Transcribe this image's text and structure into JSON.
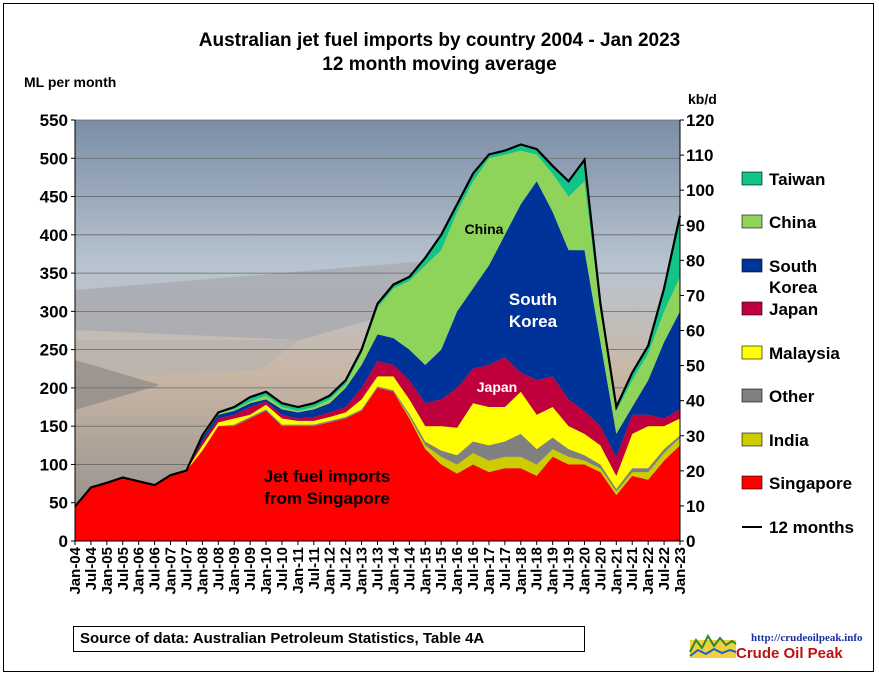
{
  "title_line1": "Australian  jet fuel imports  by country  2004 - Jan 2023",
  "title_line2": "12 month  moving  average",
  "left_axis_unit": "ML per month",
  "right_axis_unit": "kb/d",
  "source_text": "Source of data: Australian Petroleum Statistics, Table 4A",
  "logo": {
    "url": "http://crudeoilpeak.info",
    "name": "Crude Oil Peak"
  },
  "annotations": {
    "china": "China",
    "south_korea": "South\nKorea",
    "japan": "Japan",
    "singapore": "Jet fuel imports\nfrom Singapore"
  },
  "colors": {
    "Singapore": "#ff0000",
    "India": "#cccc00",
    "Other": "#808080",
    "Malaysia": "#ffff00",
    "Japan": "#c0003c",
    "South Korea": "#003399",
    "China": "#8fd45a",
    "Taiwan": "#12c38a",
    "12 months": "#000000"
  },
  "chart_data": {
    "type": "area",
    "ylabel_left": "ML per month",
    "ylabel_right": "kb/d",
    "ylim_left": [
      0,
      550
    ],
    "ylim_right": [
      0,
      120
    ],
    "yticks_left": [
      0,
      50,
      100,
      150,
      200,
      250,
      300,
      350,
      400,
      450,
      500,
      550
    ],
    "yticks_right": [
      0,
      10,
      20,
      30,
      40,
      50,
      60,
      70,
      80,
      90,
      100,
      110,
      120
    ],
    "x_ticks": [
      "Jan-04",
      "Jul-04",
      "Jan-05",
      "Jul-05",
      "Jan-06",
      "Jul-06",
      "Jan-07",
      "Jul-07",
      "Jan-08",
      "Jul-08",
      "Jan-09",
      "Jul-09",
      "Jan-10",
      "Jul-10",
      "Jan-11",
      "Jul-11",
      "Jan-12",
      "Jul-12",
      "Jan-13",
      "Jul-13",
      "Jan-14",
      "Jul-14",
      "Jan-15",
      "Jul-15",
      "Jan-16",
      "Jul-16",
      "Jan-17",
      "Jul-17",
      "Jan-18",
      "Jul-18",
      "Jan-19",
      "Jul-19",
      "Jan-20",
      "Jul-20",
      "Jan-21",
      "Jul-21",
      "Jan-22",
      "Jul-22",
      "Jan-23"
    ],
    "legend_position": "right",
    "legend": [
      "Taiwan",
      "China",
      "South Korea",
      "Japan",
      "Malaysia",
      "Other",
      "India",
      "Singapore",
      "12 months"
    ],
    "stack_order_bottom_to_top": [
      "Singapore",
      "India",
      "Other",
      "Malaysia",
      "Japan",
      "South Korea",
      "China",
      "Taiwan"
    ],
    "cumulative_top": {
      "x": [
        "Jan-04",
        "Jul-04",
        "Jan-05",
        "Jul-05",
        "Jan-06",
        "Jul-06",
        "Jan-07",
        "Jul-07",
        "Jan-08",
        "Jul-08",
        "Jan-09",
        "Jul-09",
        "Jan-10",
        "Jul-10",
        "Jan-11",
        "Jul-11",
        "Jan-12",
        "Jul-12",
        "Jan-13",
        "Jul-13",
        "Jan-14",
        "Jul-14",
        "Jan-15",
        "Jul-15",
        "Jan-16",
        "Jul-16",
        "Jan-17",
        "Jul-17",
        "Jan-18",
        "Jul-18",
        "Jan-19",
        "Jul-19",
        "Jan-20",
        "Jul-20",
        "Jan-21",
        "Jul-21",
        "Jan-22",
        "Jul-22",
        "Jan-23"
      ],
      "Singapore": [
        45,
        70,
        76,
        83,
        78,
        73,
        86,
        92,
        118,
        150,
        150,
        160,
        170,
        150,
        150,
        150,
        155,
        160,
        170,
        200,
        195,
        160,
        120,
        100,
        88,
        100,
        90,
        95,
        95,
        85,
        110,
        100,
        100,
        90,
        60,
        85,
        80,
        105,
        125
      ],
      "India": [
        45,
        70,
        76,
        83,
        78,
        73,
        86,
        92,
        118,
        150,
        150,
        160,
        170,
        150,
        150,
        150,
        155,
        160,
        170,
        200,
        195,
        163,
        125,
        110,
        100,
        115,
        105,
        110,
        110,
        100,
        120,
        110,
        105,
        95,
        65,
        90,
        90,
        115,
        135
      ],
      "Other": [
        45,
        70,
        76,
        83,
        78,
        73,
        86,
        92,
        118,
        150,
        152,
        162,
        172,
        152,
        152,
        152,
        157,
        162,
        172,
        202,
        197,
        166,
        130,
        118,
        112,
        130,
        125,
        130,
        140,
        120,
        135,
        120,
        112,
        100,
        68,
        95,
        95,
        120,
        138
      ],
      "Malaysia": [
        45,
        70,
        76,
        83,
        78,
        73,
        86,
        92,
        125,
        155,
        160,
        165,
        178,
        160,
        157,
        157,
        162,
        168,
        185,
        215,
        215,
        185,
        150,
        150,
        148,
        180,
        175,
        175,
        195,
        165,
        175,
        150,
        140,
        125,
        85,
        140,
        150,
        150,
        160
      ],
      "Japan": [
        45,
        70,
        76,
        83,
        78,
        73,
        86,
        92,
        130,
        160,
        165,
        175,
        182,
        165,
        160,
        162,
        168,
        175,
        200,
        235,
        230,
        210,
        180,
        185,
        200,
        225,
        230,
        240,
        220,
        210,
        215,
        185,
        170,
        150,
        110,
        165,
        165,
        160,
        172
      ],
      "South Korea": [
        45,
        70,
        76,
        83,
        78,
        73,
        86,
        92,
        135,
        165,
        170,
        180,
        185,
        172,
        168,
        172,
        180,
        200,
        230,
        270,
        265,
        250,
        230,
        250,
        300,
        330,
        360,
        400,
        440,
        470,
        430,
        380,
        380,
        260,
        140,
        175,
        210,
        260,
        300
      ],
      "China": [
        45,
        70,
        76,
        83,
        78,
        73,
        86,
        92,
        137,
        167,
        172,
        182,
        190,
        175,
        170,
        175,
        185,
        205,
        245,
        305,
        330,
        340,
        360,
        380,
        430,
        470,
        500,
        505,
        510,
        505,
        480,
        450,
        470,
        300,
        170,
        210,
        245,
        300,
        345
      ],
      "Taiwan": [
        45,
        70,
        76,
        83,
        78,
        73,
        86,
        92,
        138,
        168,
        175,
        188,
        195,
        180,
        175,
        180,
        190,
        210,
        250,
        310,
        335,
        345,
        370,
        400,
        440,
        480,
        505,
        510,
        518,
        512,
        490,
        470,
        498,
        310,
        175,
        220,
        255,
        330,
        425
      ]
    },
    "twelve_month_total": [
      45,
      70,
      76,
      83,
      78,
      73,
      86,
      92,
      138,
      168,
      175,
      188,
      195,
      180,
      175,
      180,
      190,
      210,
      250,
      310,
      335,
      345,
      370,
      400,
      440,
      480,
      505,
      510,
      518,
      512,
      490,
      470,
      498,
      310,
      175,
      220,
      255,
      330,
      425
    ]
  }
}
